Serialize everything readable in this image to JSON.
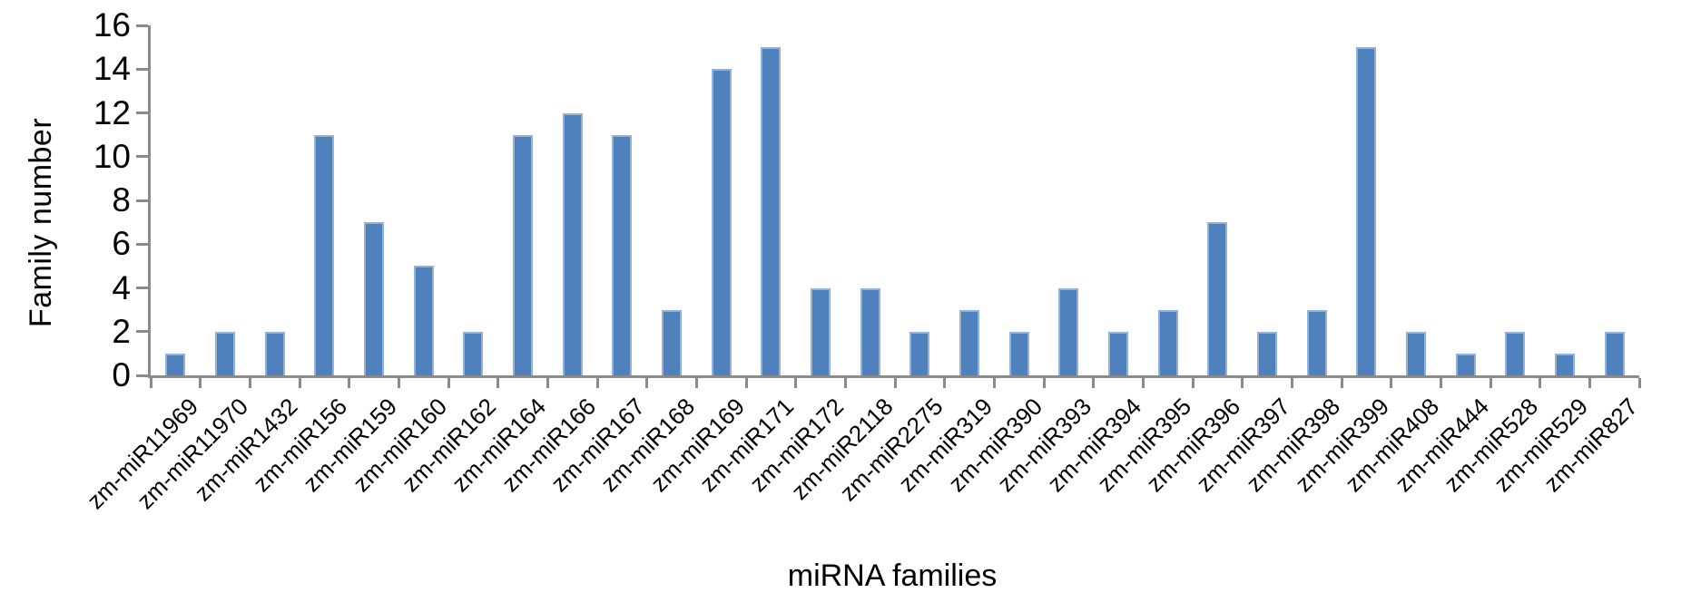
{
  "chart_data": {
    "type": "bar",
    "title": "",
    "xlabel": "miRNA families",
    "ylabel": "Family number",
    "categories": [
      "zm-miR11969",
      "zm-miR11970",
      "zm-miR1432",
      "zm-miR156",
      "zm-miR159",
      "zm-miR160",
      "zm-miR162",
      "zm-miR164",
      "zm-miR166",
      "zm-miR167",
      "zm-miR168",
      "zm-miR169",
      "zm-miR171",
      "zm-miR172",
      "zm-miR2118",
      "zm-miR2275",
      "zm-miR319",
      "zm-miR390",
      "zm-miR393",
      "zm-miR394",
      "zm-miR395",
      "zm-miR396",
      "zm-miR397",
      "zm-miR398",
      "zm-miR399",
      "zm-miR408",
      "zm-miR444",
      "zm-miR528",
      "zm-miR529",
      "zm-miR827"
    ],
    "values": [
      1,
      2,
      2,
      11,
      7,
      5,
      2,
      11,
      12,
      11,
      3,
      14,
      15,
      4,
      4,
      2,
      3,
      2,
      4,
      2,
      3,
      7,
      2,
      3,
      15,
      2,
      1,
      2,
      1,
      2
    ],
    "ylim": [
      0,
      16
    ],
    "ytick_step": 2,
    "grid": false,
    "legend": null,
    "colors": {
      "bar": "#4F81BD",
      "bar_border": "#94B2D8",
      "axis": "#8A8A8A",
      "text": "#000000",
      "background": "#FFFFFF"
    }
  }
}
